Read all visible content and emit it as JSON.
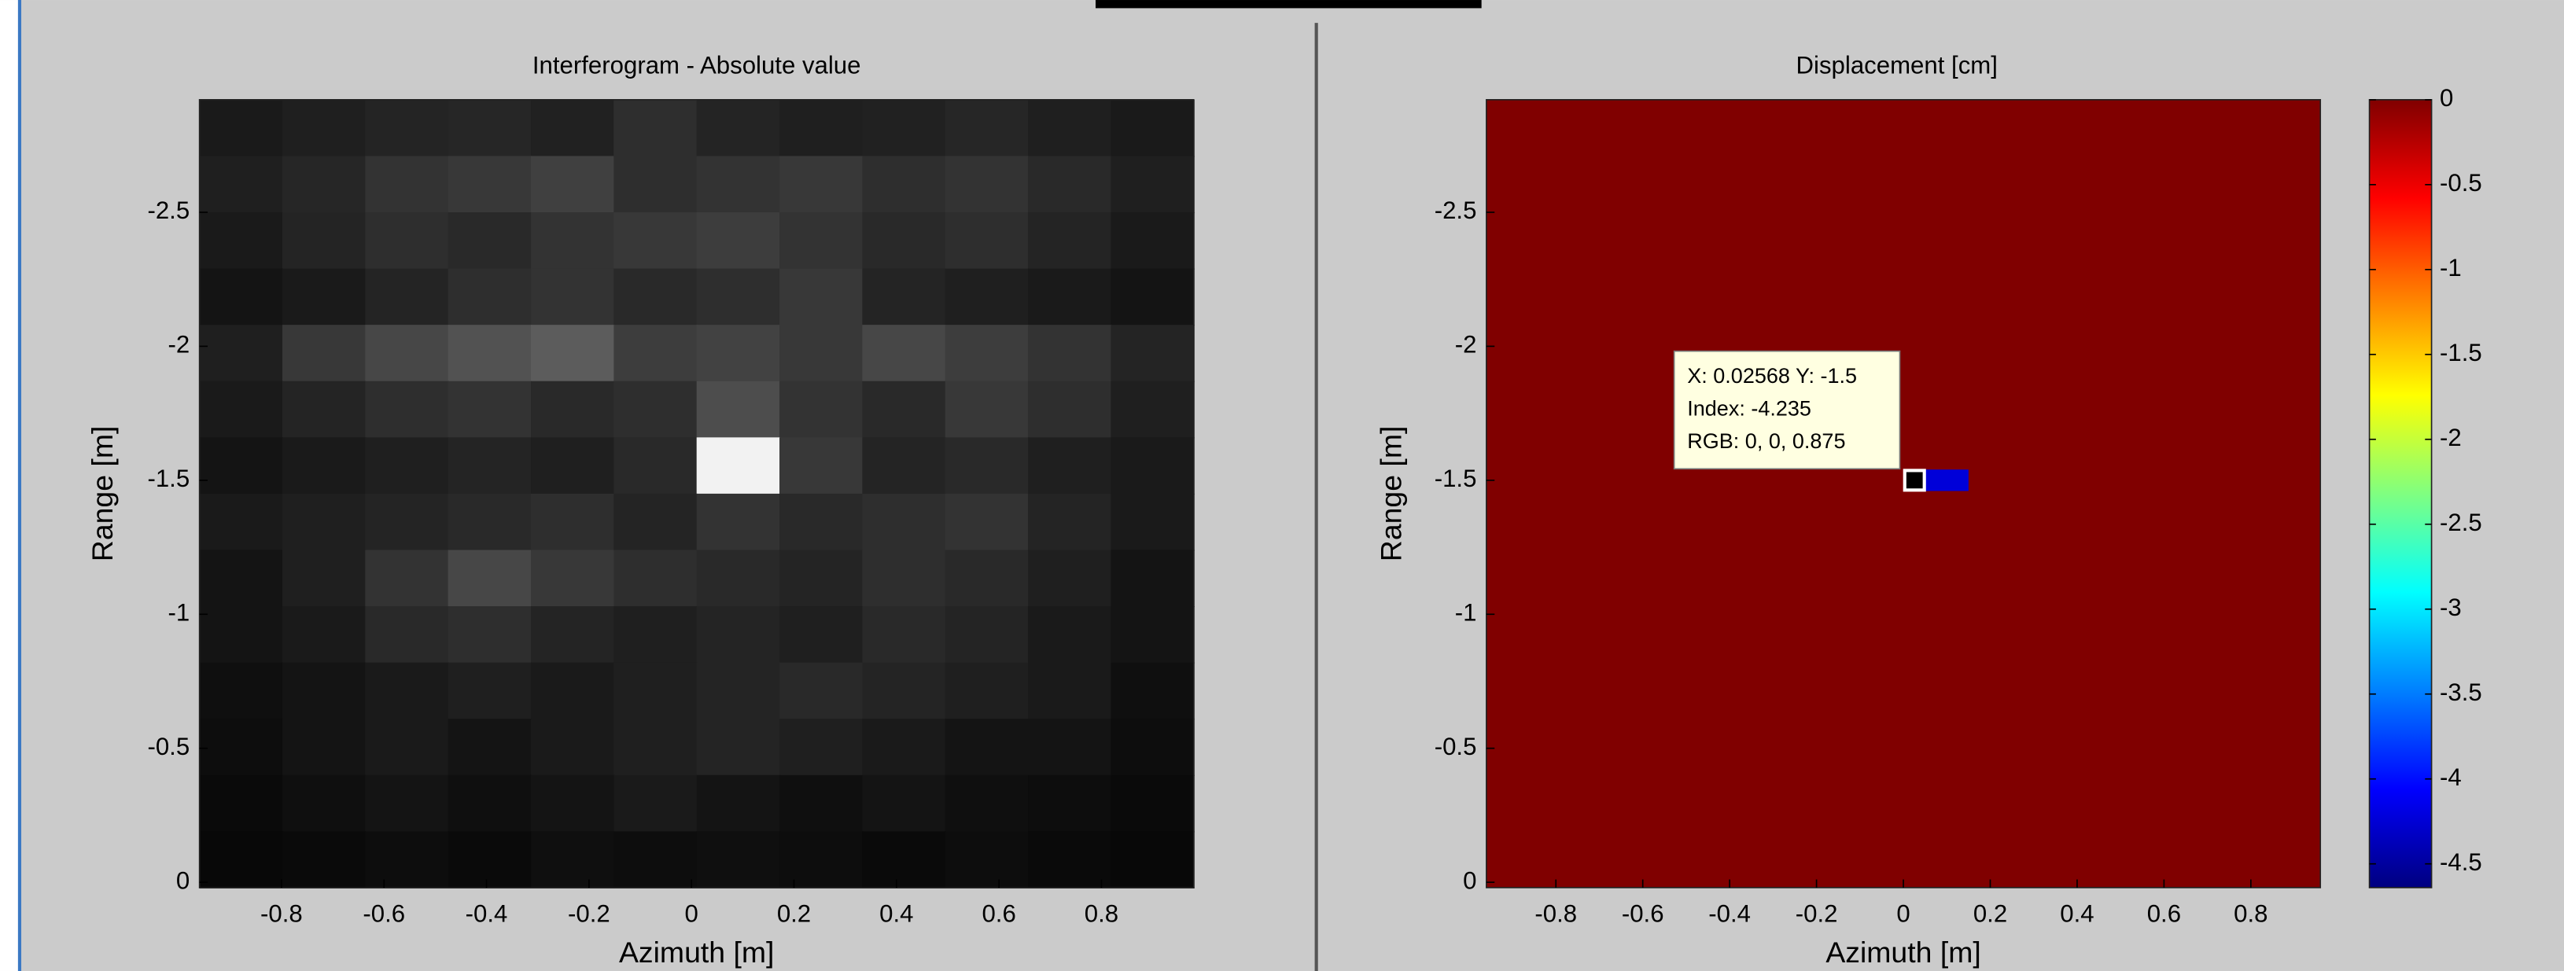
{
  "chart_data": [
    {
      "type": "heatmap",
      "title": "Interferogram - Absolute value",
      "x_label": "Azimuth [m]",
      "y_label": "Range [m]",
      "colormap": "gray",
      "clim": [
        0,
        1
      ],
      "xlim": [
        -0.96,
        0.98
      ],
      "ylim": [
        0.02,
        -2.92
      ],
      "xticks": [
        -0.8,
        -0.6,
        -0.4,
        -0.2,
        0,
        0.2,
        0.4,
        0.6,
        0.8
      ],
      "yticks": [
        -2.5,
        -2,
        -1.5,
        -1,
        -0.5,
        0
      ],
      "z": [
        [
          0.1,
          0.12,
          0.14,
          0.15,
          0.13,
          0.18,
          0.14,
          0.12,
          0.13,
          0.15,
          0.12,
          0.1
        ],
        [
          0.12,
          0.15,
          0.2,
          0.22,
          0.25,
          0.18,
          0.2,
          0.22,
          0.18,
          0.2,
          0.16,
          0.12
        ],
        [
          0.1,
          0.14,
          0.18,
          0.16,
          0.2,
          0.22,
          0.24,
          0.2,
          0.16,
          0.18,
          0.14,
          0.1
        ],
        [
          0.08,
          0.1,
          0.14,
          0.18,
          0.2,
          0.16,
          0.18,
          0.22,
          0.14,
          0.12,
          0.1,
          0.08
        ],
        [
          0.12,
          0.22,
          0.28,
          0.32,
          0.36,
          0.24,
          0.26,
          0.22,
          0.28,
          0.24,
          0.2,
          0.14
        ],
        [
          0.1,
          0.14,
          0.18,
          0.2,
          0.16,
          0.18,
          0.3,
          0.2,
          0.16,
          0.22,
          0.18,
          0.12
        ],
        [
          0.08,
          0.1,
          0.12,
          0.14,
          0.12,
          0.16,
          0.95,
          0.22,
          0.14,
          0.16,
          0.12,
          0.1
        ],
        [
          0.1,
          0.12,
          0.14,
          0.16,
          0.18,
          0.14,
          0.2,
          0.16,
          0.18,
          0.2,
          0.14,
          0.1
        ],
        [
          0.08,
          0.12,
          0.2,
          0.28,
          0.22,
          0.18,
          0.16,
          0.14,
          0.18,
          0.16,
          0.12,
          0.08
        ],
        [
          0.08,
          0.1,
          0.16,
          0.18,
          0.14,
          0.12,
          0.14,
          0.12,
          0.16,
          0.14,
          0.1,
          0.08
        ],
        [
          0.06,
          0.08,
          0.1,
          0.12,
          0.1,
          0.12,
          0.14,
          0.16,
          0.14,
          0.12,
          0.1,
          0.06
        ],
        [
          0.05,
          0.08,
          0.1,
          0.08,
          0.1,
          0.12,
          0.14,
          0.12,
          0.1,
          0.08,
          0.08,
          0.05
        ],
        [
          0.04,
          0.06,
          0.08,
          0.06,
          0.08,
          0.1,
          0.08,
          0.06,
          0.08,
          0.06,
          0.05,
          0.04
        ],
        [
          0.03,
          0.04,
          0.05,
          0.04,
          0.06,
          0.05,
          0.06,
          0.05,
          0.04,
          0.05,
          0.04,
          0.03
        ]
      ]
    },
    {
      "type": "heatmap",
      "title": "Displacement [cm]",
      "x_label": "Azimuth [m]",
      "y_label": "Range [m]",
      "colormap": "jet",
      "clim": [
        -4.64,
        0
      ],
      "colorbar": true,
      "cticks": [
        0,
        -0.5,
        -1,
        -1.5,
        -2,
        -2.5,
        -3,
        -3.5,
        -4,
        -4.5
      ],
      "xlim": [
        -0.96,
        0.96
      ],
      "ylim": [
        0.02,
        -2.92
      ],
      "xticks": [
        -0.8,
        -0.6,
        -0.4,
        -0.2,
        0,
        0.2,
        0.4,
        0.6,
        0.8
      ],
      "yticks": [
        -2.5,
        -2,
        -1.5,
        -1,
        -0.5,
        0
      ],
      "background": 0,
      "cells": [
        {
          "x": [
            0.0,
            0.15
          ],
          "y": [
            -1.46,
            -1.54
          ],
          "value": -4.235
        }
      ],
      "datatip": {
        "x": 0.02568,
        "y": -1.5,
        "lines": [
          "X: 0.02568 Y: -1.5",
          "Index: -4.235",
          "RGB: 0, 0, 0.875"
        ]
      }
    }
  ]
}
